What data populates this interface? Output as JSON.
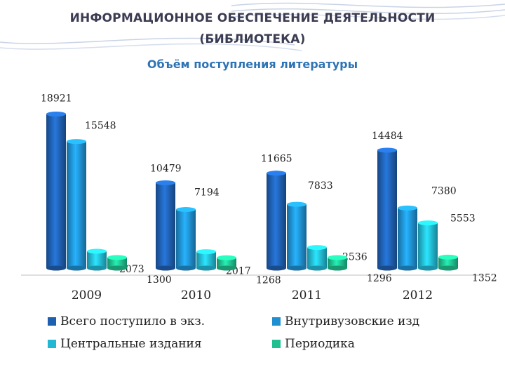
{
  "header": {
    "title_line1": "ИНФОРМАЦИОННОЕ ОБЕСПЕЧЕНИЕ ДЕЯТЕЛЬНОСТИ",
    "title_line2": "(БИБЛИОТЕКА)",
    "subtitle": "Объём поступления литературы"
  },
  "colors": {
    "total": "#1f5fb0",
    "internal": "#1f8fd0",
    "central": "#22b8d4",
    "periodical": "#1fbf8f",
    "title": "#3b3b52",
    "subtitle": "#2e74b5"
  },
  "chart_data": {
    "type": "bar",
    "title": "Объём поступления литературы",
    "categories": [
      "2009",
      "2010",
      "2011",
      "2012"
    ],
    "ylim": [
      0,
      20000
    ],
    "grid": false,
    "legend_position": "bottom",
    "series": [
      {
        "name": "Всего поступило в экз.",
        "values": [
          18921,
          10479,
          11665,
          14484
        ]
      },
      {
        "name": "Внутривузовские изд",
        "values": [
          15548,
          7194,
          7833,
          7380
        ]
      },
      {
        "name": "Центральные издания",
        "values": [
          2073,
          2017,
          2536,
          5553
        ]
      },
      {
        "name": "Периодика",
        "values": [
          1300,
          1268,
          1296,
          1352
        ]
      }
    ]
  }
}
